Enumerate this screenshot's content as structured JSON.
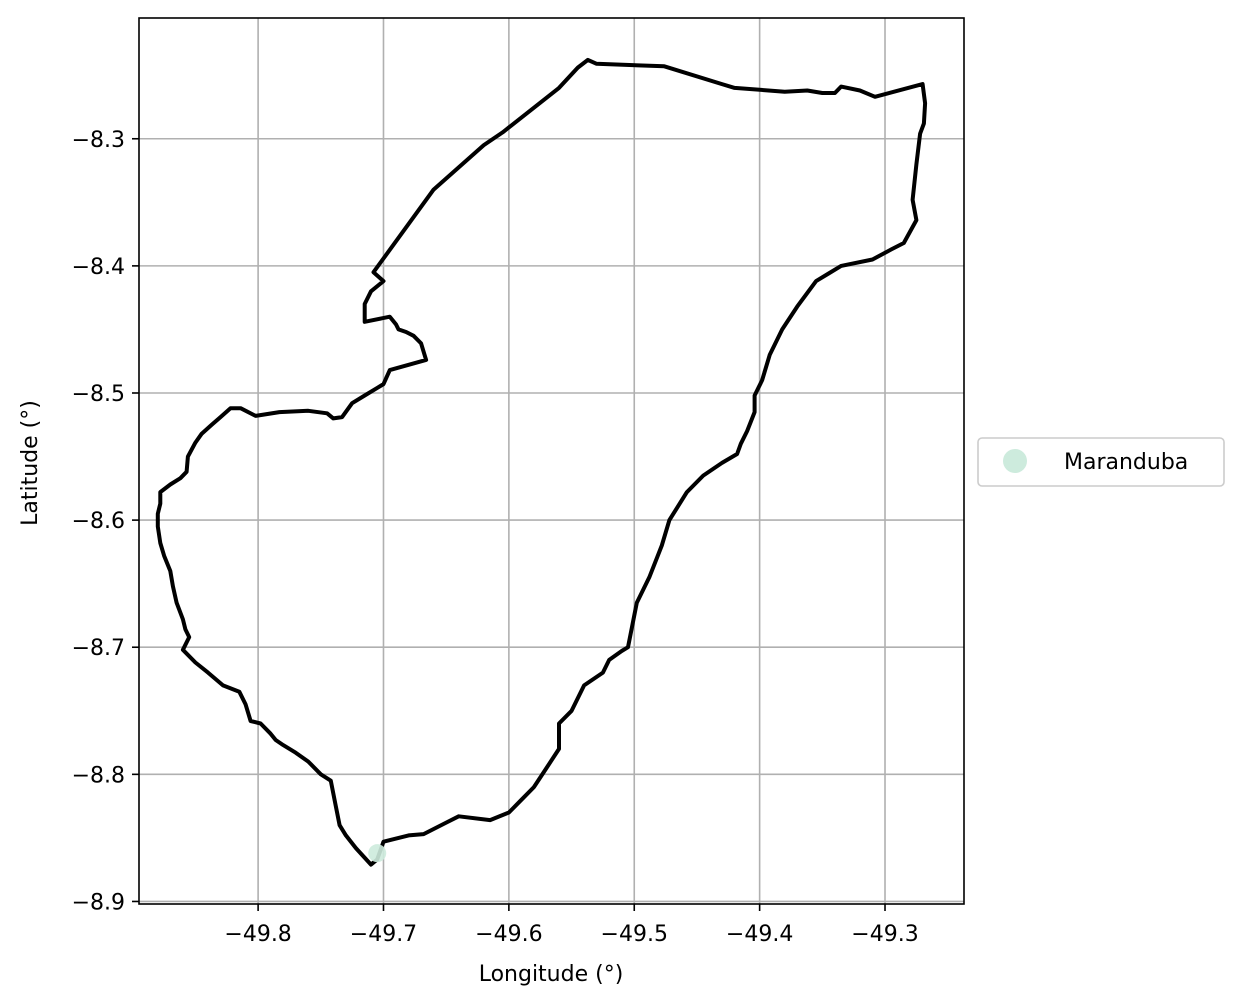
{
  "chart_data": {
    "type": "map",
    "title": "",
    "xlabel": "Longitude (°)",
    "ylabel": "Latitude (°)",
    "xlim": [
      -49.895,
      -49.237
    ],
    "ylim": [
      -8.902,
      -8.205
    ],
    "xticks": [
      -49.8,
      -49.7,
      -49.6,
      -49.5,
      -49.4,
      -49.3
    ],
    "xtick_labels": [
      "−49.8",
      "−49.7",
      "−49.6",
      "−49.5",
      "−49.4",
      "−49.3"
    ],
    "yticks": [
      -8.3,
      -8.4,
      -8.5,
      -8.6,
      -8.7,
      -8.8,
      -8.9
    ],
    "ytick_labels": [
      "−8.3",
      "−8.4",
      "−8.5",
      "−8.6",
      "−8.7",
      "−8.8",
      "−8.9"
    ],
    "grid": true,
    "boundary_color": "#000000",
    "legend": {
      "placement": "right-center",
      "entries": [
        {
          "label": "Maranduba",
          "color": "#cdebdd"
        }
      ]
    },
    "markers": [
      {
        "name": "Maranduba",
        "lon": -49.705,
        "lat": -8.862,
        "color": "#cdebdd"
      }
    ],
    "boundary": [
      [
        -49.537,
        -8.238
      ],
      [
        -49.53,
        -8.241
      ],
      [
        -49.476,
        -8.243
      ],
      [
        -49.43,
        -8.257
      ],
      [
        -49.42,
        -8.26
      ],
      [
        -49.38,
        -8.263
      ],
      [
        -49.362,
        -8.262
      ],
      [
        -49.35,
        -8.264
      ],
      [
        -49.34,
        -8.264
      ],
      [
        -49.335,
        -8.259
      ],
      [
        -49.32,
        -8.262
      ],
      [
        -49.308,
        -8.267
      ],
      [
        -49.27,
        -8.257
      ],
      [
        -49.268,
        -8.272
      ],
      [
        -49.269,
        -8.288
      ],
      [
        -49.272,
        -8.296
      ],
      [
        -49.275,
        -8.32
      ],
      [
        -49.278,
        -8.348
      ],
      [
        -49.275,
        -8.364
      ],
      [
        -49.285,
        -8.382
      ],
      [
        -49.295,
        -8.387
      ],
      [
        -49.31,
        -8.395
      ],
      [
        -49.335,
        -8.4
      ],
      [
        -49.345,
        -8.406
      ],
      [
        -49.355,
        -8.412
      ],
      [
        -49.37,
        -8.432
      ],
      [
        -49.382,
        -8.45
      ],
      [
        -49.392,
        -8.47
      ],
      [
        -49.398,
        -8.49
      ],
      [
        -49.404,
        -8.502
      ],
      [
        -49.404,
        -8.515
      ],
      [
        -49.41,
        -8.53
      ],
      [
        -49.415,
        -8.54
      ],
      [
        -49.418,
        -8.548
      ],
      [
        -49.43,
        -8.555
      ],
      [
        -49.445,
        -8.565
      ],
      [
        -49.458,
        -8.578
      ],
      [
        -49.472,
        -8.6
      ],
      [
        -49.478,
        -8.62
      ],
      [
        -49.488,
        -8.645
      ],
      [
        -49.498,
        -8.665
      ],
      [
        -49.505,
        -8.7
      ],
      [
        -49.51,
        -8.703
      ],
      [
        -49.52,
        -8.71
      ],
      [
        -49.525,
        -8.72
      ],
      [
        -49.54,
        -8.73
      ],
      [
        -49.55,
        -8.75
      ],
      [
        -49.56,
        -8.76
      ],
      [
        -49.56,
        -8.78
      ],
      [
        -49.57,
        -8.795
      ],
      [
        -49.58,
        -8.81
      ],
      [
        -49.59,
        -8.82
      ],
      [
        -49.6,
        -8.83
      ],
      [
        -49.615,
        -8.836
      ],
      [
        -49.64,
        -8.833
      ],
      [
        -49.65,
        -8.838
      ],
      [
        -49.668,
        -8.847
      ],
      [
        -49.68,
        -8.848
      ],
      [
        -49.7,
        -8.853
      ],
      [
        -49.705,
        -8.867
      ],
      [
        -49.71,
        -8.871
      ],
      [
        -49.722,
        -8.858
      ],
      [
        -49.73,
        -8.848
      ],
      [
        -49.735,
        -8.84
      ],
      [
        -49.738,
        -8.825
      ],
      [
        -49.742,
        -8.805
      ],
      [
        -49.75,
        -8.8
      ],
      [
        -49.76,
        -8.79
      ],
      [
        -49.77,
        -8.783
      ],
      [
        -49.78,
        -8.777
      ],
      [
        -49.786,
        -8.773
      ],
      [
        -49.79,
        -8.768
      ],
      [
        -49.798,
        -8.76
      ],
      [
        -49.806,
        -8.758
      ],
      [
        -49.81,
        -8.745
      ],
      [
        -49.815,
        -8.735
      ],
      [
        -49.828,
        -8.73
      ],
      [
        -49.84,
        -8.72
      ],
      [
        -49.85,
        -8.712
      ],
      [
        -49.86,
        -8.702
      ],
      [
        -49.855,
        -8.692
      ],
      [
        -49.858,
        -8.686
      ],
      [
        -49.86,
        -8.678
      ],
      [
        -49.865,
        -8.665
      ],
      [
        -49.868,
        -8.652
      ],
      [
        -49.87,
        -8.64
      ],
      [
        -49.875,
        -8.628
      ],
      [
        -49.878,
        -8.618
      ],
      [
        -49.88,
        -8.605
      ],
      [
        -49.88,
        -8.595
      ],
      [
        -49.878,
        -8.587
      ],
      [
        -49.878,
        -8.578
      ],
      [
        -49.87,
        -8.572
      ],
      [
        -49.862,
        -8.567
      ],
      [
        -49.857,
        -8.562
      ],
      [
        -49.856,
        -8.55
      ],
      [
        -49.85,
        -8.539
      ],
      [
        -49.845,
        -8.532
      ],
      [
        -49.837,
        -8.525
      ],
      [
        -49.83,
        -8.519
      ],
      [
        -49.822,
        -8.512
      ],
      [
        -49.814,
        -8.512
      ],
      [
        -49.802,
        -8.518
      ],
      [
        -49.783,
        -8.515
      ],
      [
        -49.76,
        -8.514
      ],
      [
        -49.745,
        -8.516
      ],
      [
        -49.74,
        -8.52
      ],
      [
        -49.733,
        -8.519
      ],
      [
        -49.725,
        -8.508
      ],
      [
        -49.715,
        -8.502
      ],
      [
        -49.705,
        -8.496
      ],
      [
        -49.7,
        -8.493
      ],
      [
        -49.695,
        -8.482
      ],
      [
        -49.666,
        -8.474
      ],
      [
        -49.67,
        -8.461
      ],
      [
        -49.676,
        -8.455
      ],
      [
        -49.682,
        -8.452
      ],
      [
        -49.688,
        -8.45
      ],
      [
        -49.69,
        -8.446
      ],
      [
        -49.695,
        -8.44
      ],
      [
        -49.715,
        -8.444
      ],
      [
        -49.715,
        -8.43
      ],
      [
        -49.71,
        -8.42
      ],
      [
        -49.7,
        -8.412
      ],
      [
        -49.708,
        -8.405
      ],
      [
        -49.66,
        -8.34
      ],
      [
        -49.62,
        -8.305
      ],
      [
        -49.605,
        -8.295
      ],
      [
        -49.56,
        -8.26
      ],
      [
        -49.545,
        -8.244
      ]
    ]
  }
}
